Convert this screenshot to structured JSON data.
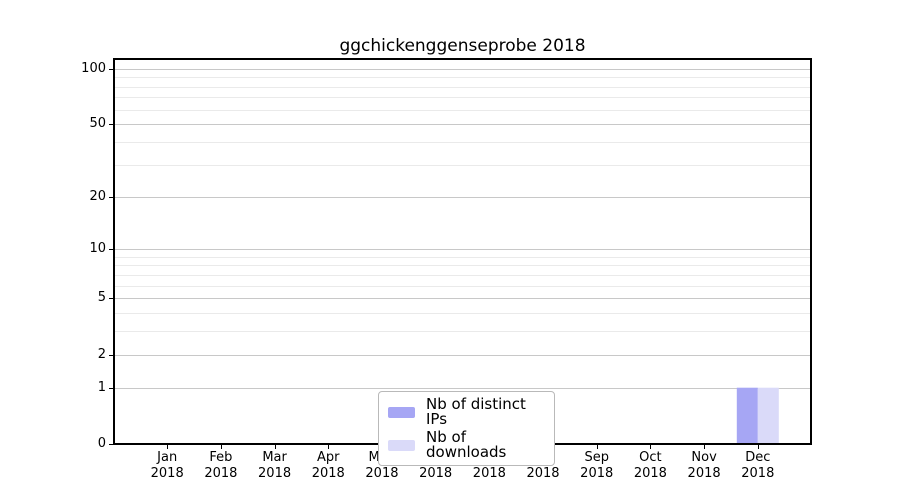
{
  "chart_data": {
    "type": "bar",
    "title": "ggchickenggenseprobe 2018",
    "categories": [
      "Jan",
      "Feb",
      "Mar",
      "Apr",
      "May",
      "Jun",
      "Jul",
      "Aug",
      "Sep",
      "Oct",
      "Nov",
      "Dec"
    ],
    "category_year": "2018",
    "series": [
      {
        "name": "Nb of distinct IPs",
        "color": "#a6a6f4",
        "values": [
          0,
          0,
          0,
          0,
          0,
          0,
          0,
          0,
          0,
          0,
          0,
          1
        ]
      },
      {
        "name": "Nb of downloads",
        "color": "#dadaf9",
        "values": [
          0,
          0,
          0,
          0,
          0,
          0,
          0,
          0,
          0,
          0,
          0,
          1
        ]
      }
    ],
    "yscale": "log1p",
    "ylim": [
      0,
      113
    ],
    "yticks": [
      0,
      1,
      2,
      5,
      10,
      20,
      50,
      100
    ],
    "yticks_minor": [
      3,
      4,
      6,
      7,
      8,
      9,
      30,
      40,
      60,
      70,
      80,
      90
    ],
    "xlabel": "",
    "ylabel": "",
    "grid": "horizontal, major and minor lines",
    "legend_position": "inside bottom-center"
  },
  "style_colors": {
    "grid_major": "#c8c8c8",
    "grid_minor": "#eaeaea",
    "spine": "#000000",
    "background": "#ffffff",
    "text": "#000000",
    "legend_border": "#b9b9b9"
  }
}
